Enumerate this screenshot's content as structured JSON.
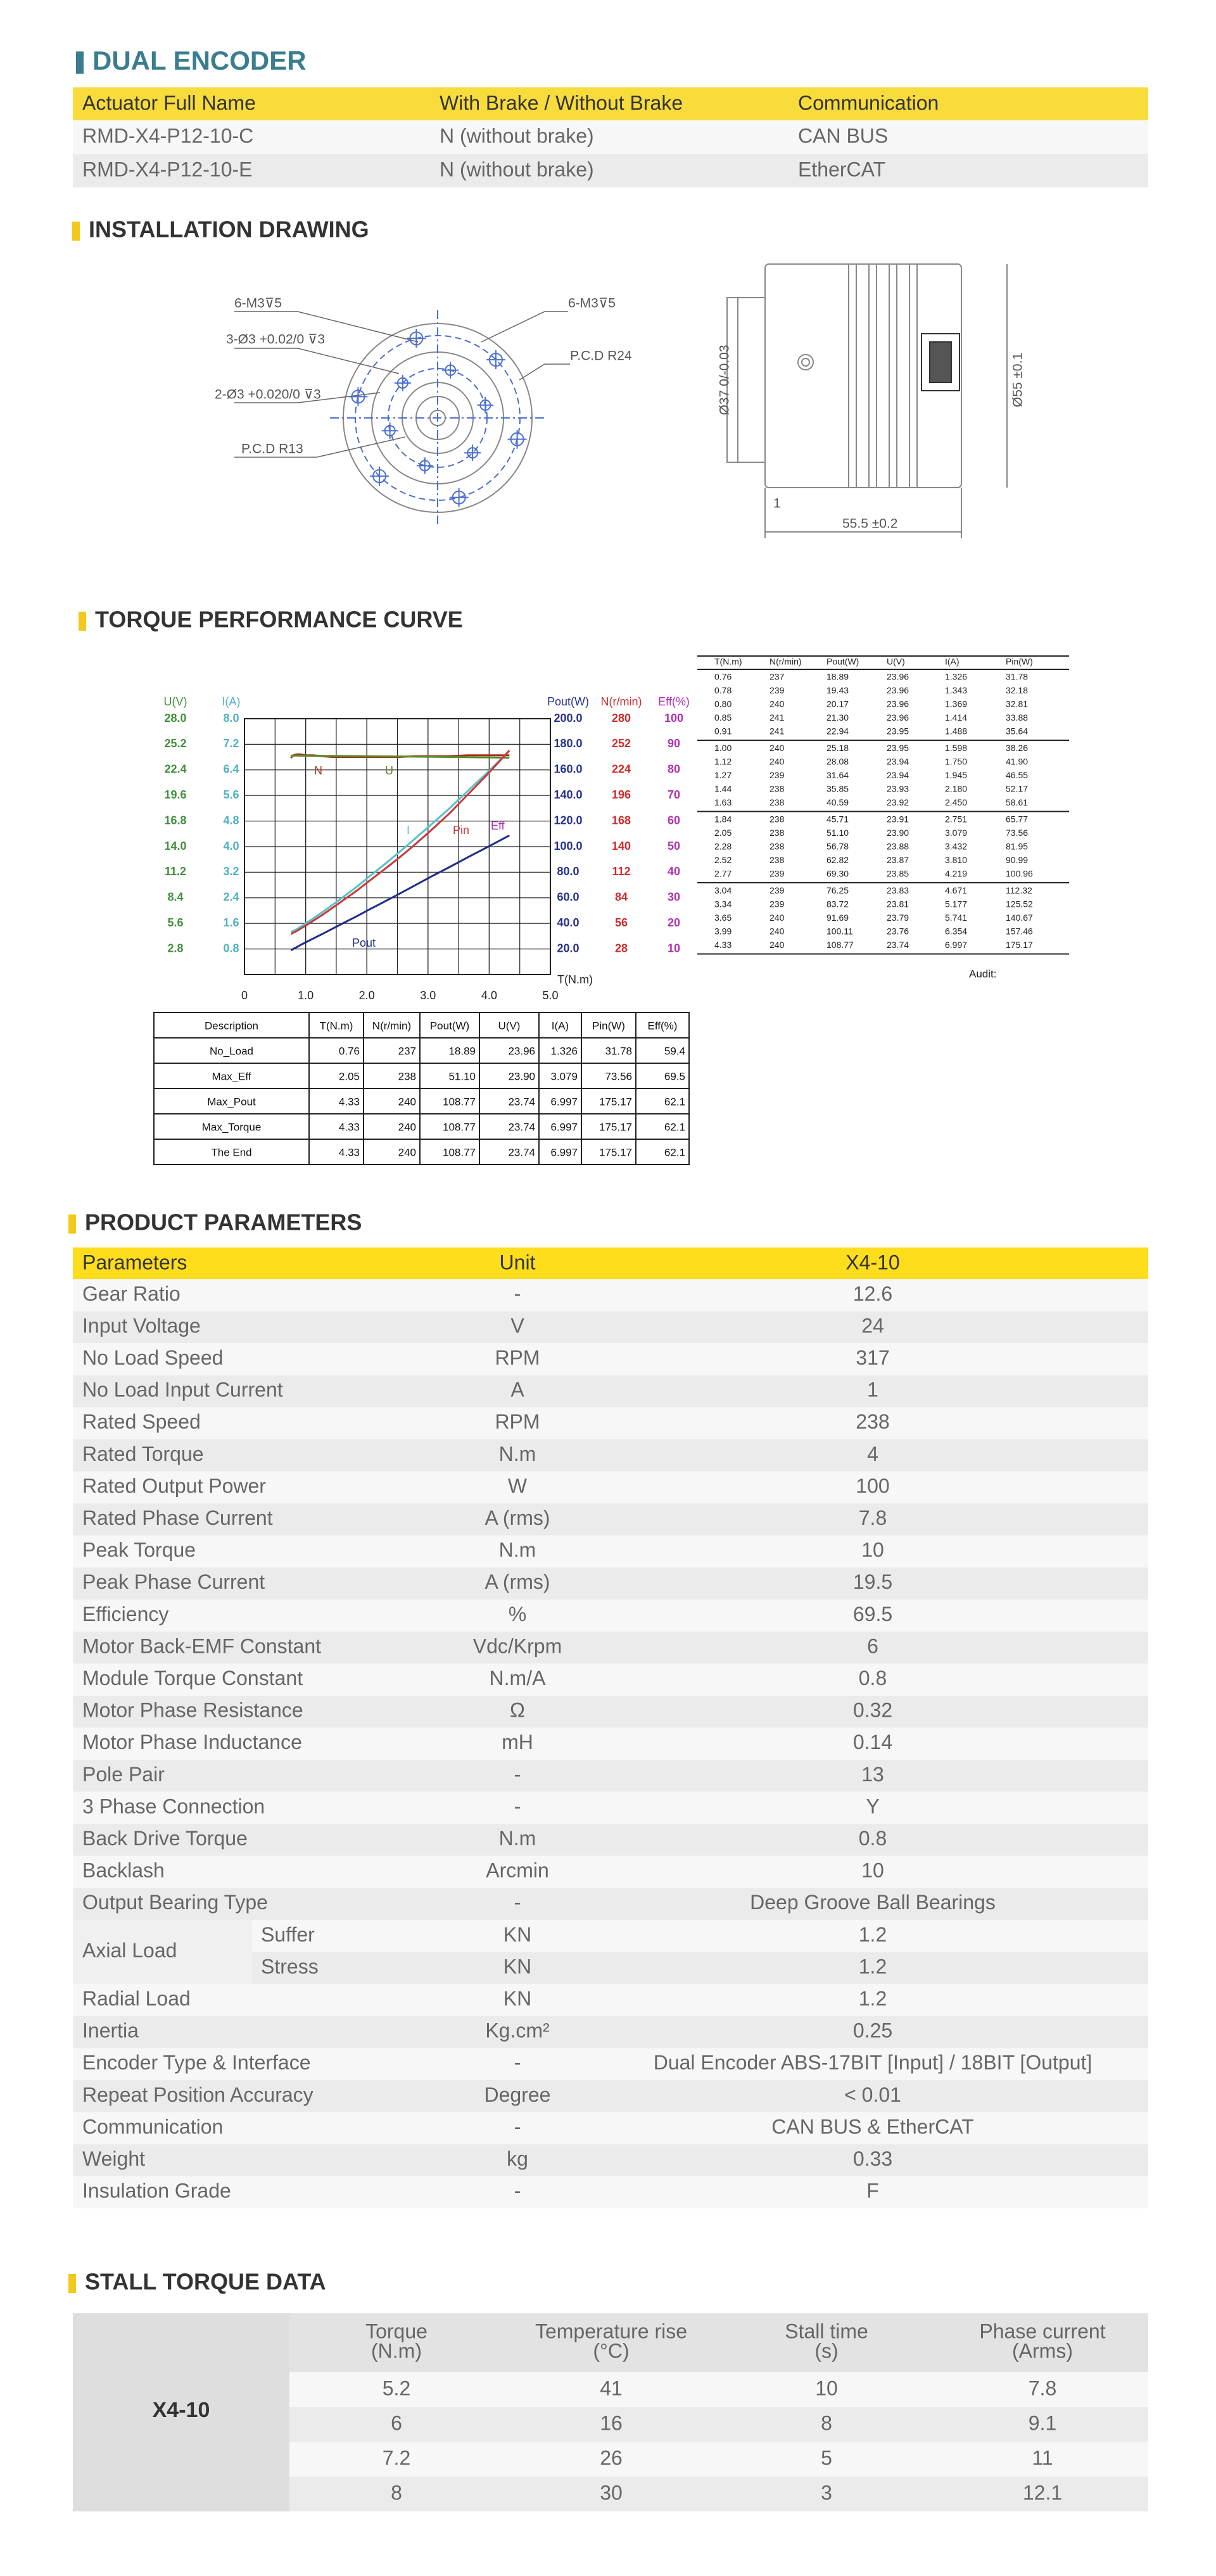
{
  "dual_encoder": {
    "title": "DUAL ENCODER",
    "header": [
      "Actuator Full Name",
      "With Brake / Without Brake",
      "Communication"
    ],
    "rows": [
      [
        "RMD-X4-P12-10-C",
        "N (without brake)",
        "CAN BUS"
      ],
      [
        "RMD-X4-P12-10-E",
        "N (without brake)",
        "EtherCAT"
      ]
    ]
  },
  "installation_drawing": {
    "title": "INSTALLATION DRAWING",
    "labels": [
      "6-M3⊽5",
      "3-Ø3 +0.02/0 ⊽3",
      "2-Ø3 +0.020/0 ⊽3",
      "P.C.D R13",
      "6-M3⊽5",
      "P.C.D R24",
      "Ø37 0/-0.03",
      "Ø55 ±0.1",
      "55.5 ±0.2",
      "1"
    ]
  },
  "torque_curve": {
    "title": "TORQUE PERFORMANCE CURVE",
    "chart": {
      "xlim": [
        0,
        5
      ],
      "xticks": [
        0,
        {
          "value": 1,
          "label": "1.0"
        },
        {
          "value": 2,
          "label": "2.0"
        },
        {
          "value": 3,
          "label": "3.0"
        },
        {
          "value": 4,
          "label": "4.0"
        },
        {
          "value": 5,
          "label": "5.0"
        }
      ],
      "x_label": "T(N.m)",
      "axes": [
        {
          "label": "U(V)",
          "color": "#3f8f3a",
          "lim": [
            0,
            28
          ],
          "ticks": [
            {
              "value": 28,
              "label": "28.0"
            },
            25.2,
            22.4,
            19.6,
            16.8,
            {
              "value": 14,
              "label": "14.0"
            },
            11.2,
            8.4,
            5.6,
            2.8
          ]
        },
        {
          "label": "I(A)",
          "color": "#4fb3c2",
          "lim": [
            0,
            8
          ],
          "ticks": [
            {
              "value": 8,
              "label": "8.0"
            },
            7.2,
            6.4,
            5.6,
            4.8,
            {
              "value": 4,
              "label": "4.0"
            },
            3.2,
            2.4,
            1.6,
            0.8
          ]
        },
        {
          "label": "Pout(W)",
          "color": "#25308f",
          "lim": [
            0,
            200
          ],
          "ticks": [
            {
              "value": 200,
              "label": "200.0"
            },
            {
              "value": 180,
              "label": "180.0"
            },
            {
              "value": 160,
              "label": "160.0"
            },
            {
              "value": 140,
              "label": "140.0"
            },
            {
              "value": 120,
              "label": "120.0"
            },
            {
              "value": 100,
              "label": "100.0"
            },
            {
              "value": 80,
              "label": "80.0"
            },
            {
              "value": 60,
              "label": "60.0"
            },
            {
              "value": 40,
              "label": "40.0"
            },
            {
              "value": 20,
              "label": "20.0"
            }
          ]
        },
        {
          "label": "N(r/min)",
          "color": "#d02a2a",
          "lim": [
            0,
            280
          ],
          "ticks": [
            280,
            252,
            224,
            196,
            168,
            140,
            112,
            84,
            56,
            28
          ]
        },
        {
          "label": "Eff(%)",
          "color": "#b030b0",
          "lim": [
            0,
            100
          ],
          "ticks": [
            100,
            90,
            80,
            70,
            60,
            50,
            40,
            30,
            20,
            10
          ]
        }
      ],
      "curves": [
        {
          "label": "N",
          "column": 1,
          "axis": 3,
          "color": "#a8321e"
        },
        {
          "label": "U",
          "column": 3,
          "axis": 0,
          "color": "#5c8a2a"
        },
        {
          "label": "I",
          "column": 4,
          "axis": 1,
          "color": "#56c1cc"
        },
        {
          "label": "Pin",
          "column": 5,
          "axis": 2,
          "color": "#c83a3a"
        },
        {
          "label": "Eff",
          "color": "#b030b0"
        },
        {
          "label": "Pout",
          "column": 2,
          "axis": 2,
          "color": "#1f2d8c"
        }
      ]
    },
    "data_table": {
      "header": [
        "T(N.m)",
        "N(r/min)",
        "Pout(W)",
        "U(V)",
        "I(A)",
        "Pin(W)"
      ],
      "rows": [
        [
          "0.76",
          "237",
          "18.89",
          "23.96",
          "1.326",
          "31.78"
        ],
        [
          "0.78",
          "239",
          "19.43",
          "23.96",
          "1.343",
          "32.18"
        ],
        [
          "0.80",
          "240",
          "20.17",
          "23.96",
          "1.369",
          "32.81"
        ],
        [
          "0.85",
          "241",
          "21.30",
          "23.96",
          "1.414",
          "33.88"
        ],
        [
          "0.91",
          "241",
          "22.94",
          "23.95",
          "1.488",
          "35.64"
        ],
        [
          "1.00",
          "240",
          "25.18",
          "23.95",
          "1.598",
          "38.26"
        ],
        [
          "1.12",
          "240",
          "28.08",
          "23.94",
          "1.750",
          "41.90"
        ],
        [
          "1.27",
          "239",
          "31.64",
          "23.94",
          "1.945",
          "46.55"
        ],
        [
          "1.44",
          "238",
          "35.85",
          "23.93",
          "2.180",
          "52.17"
        ],
        [
          "1.63",
          "238",
          "40.59",
          "23.92",
          "2.450",
          "58.61"
        ],
        [
          "1.84",
          "238",
          "45.71",
          "23.91",
          "2.751",
          "65.77"
        ],
        [
          "2.05",
          "238",
          "51.10",
          "23.90",
          "3.079",
          "73.56"
        ],
        [
          "2.28",
          "238",
          "56.78",
          "23.88",
          "3.432",
          "81.95"
        ],
        [
          "2.52",
          "238",
          "62.82",
          "23.87",
          "3.810",
          "90.99"
        ],
        [
          "2.77",
          "239",
          "69.30",
          "23.85",
          "4.219",
          "100.96"
        ],
        [
          "3.04",
          "239",
          "76.25",
          "23.83",
          "4.671",
          "112.32"
        ],
        [
          "3.34",
          "239",
          "83.72",
          "23.81",
          "5.177",
          "125.52"
        ],
        [
          "3.65",
          "240",
          "91.69",
          "23.79",
          "5.741",
          "140.67"
        ],
        [
          "3.99",
          "240",
          "100.11",
          "23.76",
          "6.354",
          "157.46"
        ],
        [
          "4.33",
          "240",
          "108.77",
          "23.74",
          "6.997",
          "175.17"
        ]
      ],
      "audit": "Audit:"
    },
    "summary_table": {
      "header": [
        "Description",
        "T(N.m)",
        "N(r/min)",
        "Pout(W)",
        "U(V)",
        "I(A)",
        "Pin(W)",
        "Eff(%)"
      ],
      "rows": [
        [
          "No_Load",
          "0.76",
          "237",
          "18.89",
          "23.96",
          "1.326",
          "31.78",
          "59.4"
        ],
        [
          "Max_Eff",
          "2.05",
          "238",
          "51.10",
          "23.90",
          "3.079",
          "73.56",
          "69.5"
        ],
        [
          "Max_Pout",
          "4.33",
          "240",
          "108.77",
          "23.74",
          "6.997",
          "175.17",
          "62.1"
        ],
        [
          "Max_Torque",
          "4.33",
          "240",
          "108.77",
          "23.74",
          "6.997",
          "175.17",
          "62.1"
        ],
        [
          "The End",
          "4.33",
          "240",
          "108.77",
          "23.74",
          "6.997",
          "175.17",
          "62.1"
        ]
      ]
    }
  },
  "product_parameters": {
    "title": "PRODUCT PARAMETERS",
    "header": [
      "Parameters",
      "Unit",
      "X4-10"
    ],
    "rows": [
      {
        "param": "Gear Ratio",
        "unit": "-",
        "value": "12.6"
      },
      {
        "param": "Input Voltage",
        "unit": "V",
        "value": "24"
      },
      {
        "param": "No Load Speed",
        "unit": "RPM",
        "value": "317"
      },
      {
        "param": "No Load Input Current",
        "unit": "A",
        "value": "1"
      },
      {
        "param": "Rated Speed",
        "unit": "RPM",
        "value": "238"
      },
      {
        "param": "Rated Torque",
        "unit": "N.m",
        "value": "4"
      },
      {
        "param": "Rated Output Power",
        "unit": "W",
        "value": "100"
      },
      {
        "param": "Rated Phase Current",
        "unit": "A (rms)",
        "value": "7.8"
      },
      {
        "param": "Peak Torque",
        "unit": "N.m",
        "value": "10"
      },
      {
        "param": "Peak Phase Current",
        "unit": "A (rms)",
        "value": "19.5"
      },
      {
        "param": "Efficiency",
        "unit": "%",
        "value": "69.5"
      },
      {
        "param": "Motor Back-EMF Constant",
        "unit": "Vdc/Krpm",
        "value": "6"
      },
      {
        "param": "Module Torque Constant",
        "unit": "N.m/A",
        "value": "0.8"
      },
      {
        "param": "Motor Phase Resistance",
        "unit": "Ω",
        "value": "0.32"
      },
      {
        "param": "Motor Phase Inductance",
        "unit": "mH",
        "value": "0.14"
      },
      {
        "param": "Pole Pair",
        "unit": "-",
        "value": "13"
      },
      {
        "param": "3 Phase Connection",
        "unit": "-",
        "value": "Y"
      },
      {
        "param": "Back Drive Torque",
        "unit": "N.m",
        "value": "0.8"
      },
      {
        "param": "Backlash",
        "unit": "Arcmin",
        "value": "10"
      },
      {
        "param": "Output Bearing Type",
        "unit": "-",
        "value": "Deep Groove Ball Bearings"
      },
      {
        "param": "Axial Load",
        "sub": [
          {
            "name": "Suffer",
            "unit": "KN",
            "value": "1.2"
          },
          {
            "name": "Stress",
            "unit": "KN",
            "value": "1.2"
          }
        ]
      },
      {
        "param": "Radial Load",
        "unit": "KN",
        "value": "1.2"
      },
      {
        "param": "Inertia",
        "unit": "Kg.cm²",
        "value": "0.25"
      },
      {
        "param": "Encoder Type & Interface",
        "unit": "-",
        "value": "Dual Encoder ABS-17BIT [Input] / 18BIT [Output]"
      },
      {
        "param": "Repeat Position Accuracy",
        "unit": "Degree",
        "value": "< 0.01"
      },
      {
        "param": "Communication",
        "unit": "-",
        "value": "CAN BUS & EtherCAT"
      },
      {
        "param": "Weight",
        "unit": "kg",
        "value": "0.33"
      },
      {
        "param": "Insulation Grade",
        "unit": "-",
        "value": "F"
      }
    ]
  },
  "stall_torque": {
    "title": "STALL TORQUE DATA",
    "model": "X4-10",
    "header": [
      [
        "Torque",
        "(N.m)"
      ],
      [
        "Temperature rise",
        "(°C)"
      ],
      [
        "Stall time",
        "(s)"
      ],
      [
        "Phase current",
        "(Arms)"
      ]
    ],
    "rows": [
      [
        "5.2",
        "41",
        "10",
        "7.8"
      ],
      [
        "6",
        "16",
        "8",
        "9.1"
      ],
      [
        "7.2",
        "26",
        "5",
        "11"
      ],
      [
        "8",
        "30",
        "3",
        "12.1"
      ]
    ]
  }
}
